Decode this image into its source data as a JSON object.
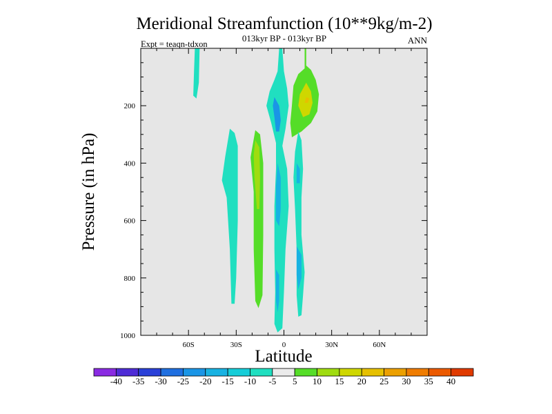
{
  "chart_data": {
    "type": "contour",
    "title": "Meridional Streamfunction (10**9kg/m-2)",
    "subtitle": "013kyr BP - 013kyr BP",
    "left_annotation": "Expt = teaqn-tdxon",
    "right_annotation": "ANN",
    "xlabel": "Latitude",
    "ylabel": "Pressure (in hPa)",
    "xlim": [
      -90,
      90
    ],
    "ylim": [
      1000,
      0
    ],
    "x_ticks": [
      {
        "value": -60,
        "label": "60S"
      },
      {
        "value": -30,
        "label": "30S"
      },
      {
        "value": 0,
        "label": "0"
      },
      {
        "value": 30,
        "label": "30N"
      },
      {
        "value": 60,
        "label": "60N"
      }
    ],
    "y_ticks": [
      {
        "value": 200,
        "label": "200"
      },
      {
        "value": 400,
        "label": "400"
      },
      {
        "value": 600,
        "label": "600"
      },
      {
        "value": 800,
        "label": "800"
      },
      {
        "value": 1000,
        "label": "1000"
      }
    ],
    "background_color": "#e6e6e6",
    "colorbar": {
      "labels": [
        "-40",
        "-35",
        "-30",
        "-25",
        "-20",
        "-15",
        "-10",
        "-5",
        "5",
        "10",
        "15",
        "20",
        "25",
        "30",
        "35",
        "40"
      ],
      "colors": [
        "#8a2be2",
        "#4e2cd6",
        "#2a40d8",
        "#1f6fe0",
        "#1a95e6",
        "#18b2e2",
        "#16cdd8",
        "#20dfc0",
        "#ebebeb",
        "#55dd28",
        "#9fdc10",
        "#cfd700",
        "#e6c000",
        "#eca000",
        "#ef7c00",
        "#ec5a00",
        "#e03a00"
      ]
    },
    "features": [
      {
        "name": "Upper-level cell near 55S",
        "lat": [
          -56,
          -52
        ],
        "pressure": [
          0,
          175
        ],
        "level": "-10 to -5"
      },
      {
        "name": "Column near 30S",
        "lat": [
          -38,
          -28
        ],
        "pressure": [
          280,
          900
        ],
        "level": "-10 to -5"
      },
      {
        "name": "Positive column near 18S",
        "lat": [
          -22,
          -12
        ],
        "pressure": [
          285,
          905
        ],
        "level": "5 to 10",
        "core_level": "10 to 15",
        "core_pressure": [
          320,
          560
        ]
      },
      {
        "name": "Equatorial column",
        "lat": [
          -9,
          3
        ],
        "pressure": [
          0,
          985
        ],
        "level": "-10 to -5",
        "core_level": "-15 to -10"
      },
      {
        "name": "Upper core near 5S",
        "lat": [
          -7,
          -1
        ],
        "pressure": [
          180,
          290
        ],
        "level": "-20 to -15"
      },
      {
        "name": "Positive cell near 12N",
        "lat": [
          5,
          24
        ],
        "pressure": [
          0,
          305
        ],
        "level": "5 to 10",
        "core_level": "15 to 20",
        "peak_level": "20 to 25"
      },
      {
        "name": "Column near 8N",
        "lat": [
          4,
          14
        ],
        "pressure": [
          290,
          935
        ],
        "level": "-10 to -5",
        "core_level": "-15 to -10"
      }
    ]
  }
}
